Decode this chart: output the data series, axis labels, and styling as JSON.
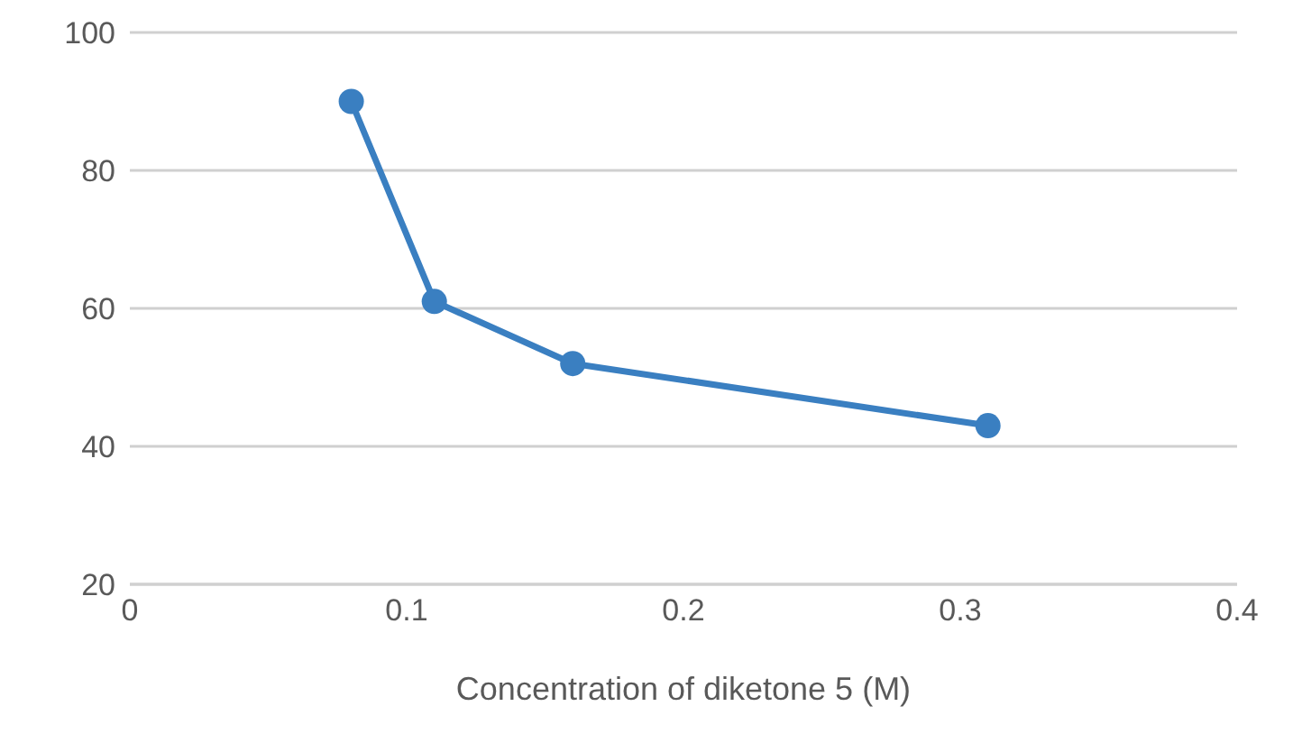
{
  "chart_data": {
    "type": "line",
    "xlabel": "Concentration of diketone 5 (M)",
    "x": [
      0.08,
      0.11,
      0.16,
      0.31
    ],
    "series": [
      {
        "color": "#3a7fc1",
        "values": [
          90,
          61,
          52,
          43
        ]
      }
    ],
    "xlim": [
      0,
      0.4
    ],
    "xticks": [
      0,
      0.1,
      0.2,
      0.3,
      0.4
    ],
    "ylim": [
      20,
      100
    ],
    "yticks": [
      20,
      40,
      60,
      80,
      100
    ],
    "grid": "y",
    "legend": false,
    "marker": "circle",
    "line_style": "solid"
  }
}
